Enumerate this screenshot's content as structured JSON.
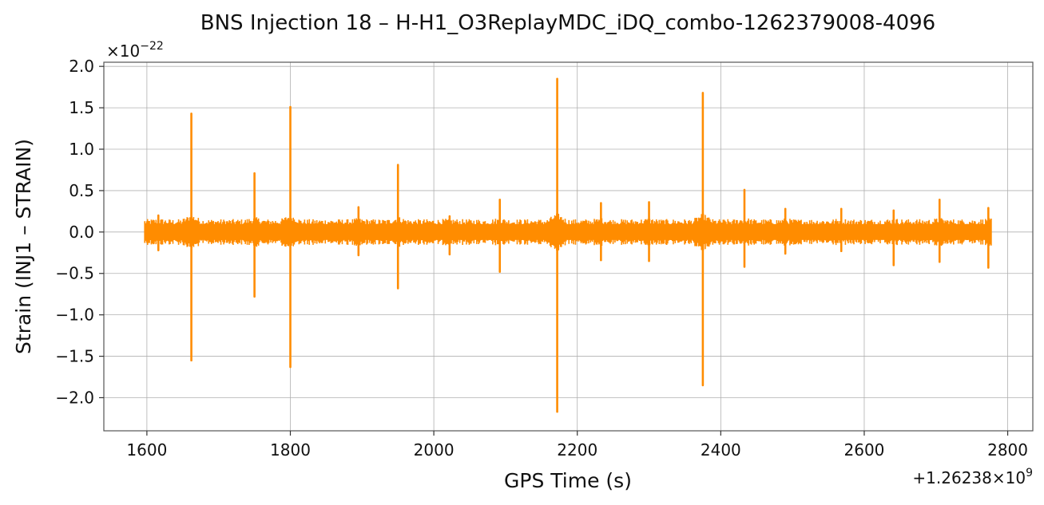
{
  "chart_data": {
    "type": "line",
    "title": "BNS Injection 18 – H-H1_O3ReplayMDC_iDQ_combo-1262379008-4096",
    "xlabel": "GPS Time (s)",
    "ylabel": "Strain (INJ1 – STRAIN)",
    "x_offset_label": "+1.26238×10",
    "x_offset_exp": "9",
    "y_scale_label": "×10",
    "y_scale_exp": "−22",
    "xlim": [
      1540,
      2835
    ],
    "ylim": [
      -2.4,
      2.05
    ],
    "x_ticks": [
      1600,
      1800,
      2000,
      2200,
      2400,
      2600,
      2800
    ],
    "x_tick_labels": [
      "1600",
      "1800",
      "2000",
      "2200",
      "2400",
      "2600",
      "2800"
    ],
    "y_ticks": [
      -2.0,
      -1.5,
      -1.0,
      -0.5,
      0.0,
      0.5,
      1.0,
      1.5,
      2.0
    ],
    "y_tick_labels": [
      "−2.0",
      "−1.5",
      "−1.0",
      "−0.5",
      "0.0",
      "0.5",
      "1.0",
      "1.5",
      "2.0"
    ],
    "grid": true,
    "color": "#ff8c00",
    "x_range": [
      1597,
      2777
    ],
    "background_band": [
      -0.12,
      0.12
    ],
    "spikes": [
      {
        "x": 1616,
        "max": 0.2,
        "min": -0.22
      },
      {
        "x": 1662,
        "max": 1.43,
        "min": -1.55
      },
      {
        "x": 1750,
        "max": 0.71,
        "min": -0.78
      },
      {
        "x": 1800,
        "max": 1.51,
        "min": -1.63
      },
      {
        "x": 1895,
        "max": 0.3,
        "min": -0.28
      },
      {
        "x": 1950,
        "max": 0.81,
        "min": -0.68
      },
      {
        "x": 2022,
        "max": 0.19,
        "min": -0.27
      },
      {
        "x": 2092,
        "max": 0.39,
        "min": -0.48
      },
      {
        "x": 2172,
        "max": 1.85,
        "min": -2.17
      },
      {
        "x": 2233,
        "max": 0.35,
        "min": -0.34
      },
      {
        "x": 2300,
        "max": 0.36,
        "min": -0.35
      },
      {
        "x": 2375,
        "max": 1.68,
        "min": -1.85
      },
      {
        "x": 2433,
        "max": 0.51,
        "min": -0.42
      },
      {
        "x": 2490,
        "max": 0.28,
        "min": -0.26
      },
      {
        "x": 2568,
        "max": 0.28,
        "min": -0.23
      },
      {
        "x": 2641,
        "max": 0.26,
        "min": -0.4
      },
      {
        "x": 2705,
        "max": 0.39,
        "min": -0.36
      },
      {
        "x": 2773,
        "max": 0.29,
        "min": -0.43
      }
    ]
  }
}
